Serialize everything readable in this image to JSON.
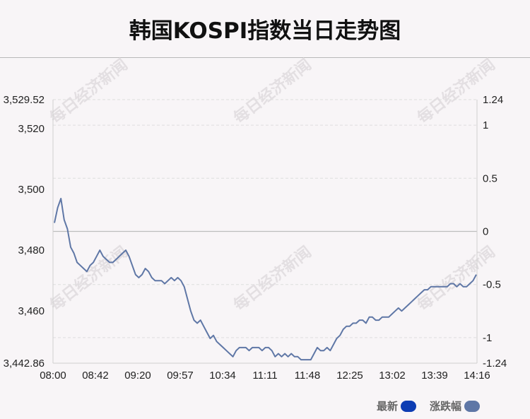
{
  "title": "韩国KOSPI指数当日走势图",
  "watermark": "每日经济新闻",
  "legend": [
    {
      "label": "最新",
      "color": "#0d3db3"
    },
    {
      "label": "涨跌幅",
      "color": "#5f77a6"
    }
  ],
  "chart_data": {
    "type": "line",
    "y_left_ticks": [
      "3,529.52",
      "3,520",
      "3,500",
      "3,480",
      "3,460",
      "3,442.86"
    ],
    "y_right_ticks": [
      "1.24",
      "1",
      "0.5",
      "0",
      "-0.5",
      "-1",
      "-1.24"
    ],
    "x_ticks": [
      "08:00",
      "08:42",
      "09:20",
      "09:57",
      "10:34",
      "11:11",
      "11:48",
      "12:25",
      "13:02",
      "13:39",
      "14:16"
    ],
    "ylim": [
      3442.86,
      3529.52
    ],
    "ylim_pct": [
      -1.24,
      1.24
    ],
    "line_color": "#5f77a6",
    "grid": "dashed horizontal",
    "series": [
      {
        "name": "最新",
        "points": [
          [
            0,
            3489
          ],
          [
            1,
            3494
          ],
          [
            2,
            3497
          ],
          [
            3,
            3490
          ],
          [
            4,
            3487
          ],
          [
            5,
            3481
          ],
          [
            6,
            3479
          ],
          [
            7,
            3476
          ],
          [
            8,
            3475
          ],
          [
            9,
            3474
          ],
          [
            10,
            3473
          ],
          [
            11,
            3475
          ],
          [
            12,
            3476
          ],
          [
            13,
            3478
          ],
          [
            14,
            3480
          ],
          [
            15,
            3478
          ],
          [
            16,
            3477
          ],
          [
            17,
            3476
          ],
          [
            18,
            3476
          ],
          [
            19,
            3477
          ],
          [
            20,
            3478
          ],
          [
            21,
            3479
          ],
          [
            22,
            3480
          ],
          [
            23,
            3478
          ],
          [
            24,
            3475
          ],
          [
            25,
            3472
          ],
          [
            26,
            3471
          ],
          [
            27,
            3472
          ],
          [
            28,
            3474
          ],
          [
            29,
            3473
          ],
          [
            30,
            3471
          ],
          [
            31,
            3470
          ],
          [
            32,
            3470
          ],
          [
            33,
            3470
          ],
          [
            34,
            3469
          ],
          [
            35,
            3470
          ],
          [
            36,
            3471
          ],
          [
            37,
            3470
          ],
          [
            38,
            3471
          ],
          [
            39,
            3470
          ],
          [
            40,
            3468
          ],
          [
            41,
            3464
          ],
          [
            42,
            3460
          ],
          [
            43,
            3457
          ],
          [
            44,
            3456
          ],
          [
            45,
            3457
          ],
          [
            46,
            3455
          ],
          [
            47,
            3453
          ],
          [
            48,
            3451
          ],
          [
            49,
            3452
          ],
          [
            50,
            3450
          ],
          [
            51,
            3449
          ],
          [
            52,
            3448
          ],
          [
            53,
            3447
          ],
          [
            54,
            3446
          ],
          [
            55,
            3445
          ],
          [
            56,
            3447
          ],
          [
            57,
            3448
          ],
          [
            58,
            3448
          ],
          [
            59,
            3448
          ],
          [
            60,
            3447
          ],
          [
            61,
            3448
          ],
          [
            62,
            3448
          ],
          [
            63,
            3448
          ],
          [
            64,
            3447
          ],
          [
            65,
            3448
          ],
          [
            66,
            3448
          ],
          [
            67,
            3447
          ],
          [
            68,
            3445
          ],
          [
            69,
            3446
          ],
          [
            70,
            3445
          ],
          [
            71,
            3446
          ],
          [
            72,
            3445
          ],
          [
            73,
            3446
          ],
          [
            74,
            3445
          ],
          [
            75,
            3445
          ],
          [
            76,
            3444
          ],
          [
            77,
            3444
          ],
          [
            78,
            3444
          ],
          [
            79,
            3444
          ],
          [
            80,
            3446
          ],
          [
            81,
            3448
          ],
          [
            82,
            3447
          ],
          [
            83,
            3447
          ],
          [
            84,
            3448
          ],
          [
            85,
            3447
          ],
          [
            86,
            3449
          ],
          [
            87,
            3451
          ],
          [
            88,
            3452
          ],
          [
            89,
            3454
          ],
          [
            90,
            3455
          ],
          [
            91,
            3455
          ],
          [
            92,
            3456
          ],
          [
            93,
            3456
          ],
          [
            94,
            3457
          ],
          [
            95,
            3457
          ],
          [
            96,
            3456
          ],
          [
            97,
            3458
          ],
          [
            98,
            3458
          ],
          [
            99,
            3457
          ],
          [
            100,
            3457
          ],
          [
            101,
            3458
          ],
          [
            102,
            3458
          ],
          [
            103,
            3458
          ],
          [
            104,
            3459
          ],
          [
            105,
            3460
          ],
          [
            106,
            3461
          ],
          [
            107,
            3460
          ],
          [
            108,
            3461
          ],
          [
            109,
            3462
          ],
          [
            110,
            3463
          ],
          [
            111,
            3464
          ],
          [
            112,
            3465
          ],
          [
            113,
            3466
          ],
          [
            114,
            3467
          ],
          [
            115,
            3467
          ],
          [
            116,
            3468
          ],
          [
            117,
            3468
          ],
          [
            118,
            3468
          ],
          [
            119,
            3468
          ],
          [
            120,
            3468
          ],
          [
            121,
            3468
          ],
          [
            122,
            3469
          ],
          [
            123,
            3469
          ],
          [
            124,
            3468
          ],
          [
            125,
            3469
          ],
          [
            126,
            3468
          ],
          [
            127,
            3468
          ],
          [
            128,
            3469
          ],
          [
            129,
            3470
          ],
          [
            130,
            3472
          ]
        ]
      }
    ]
  }
}
